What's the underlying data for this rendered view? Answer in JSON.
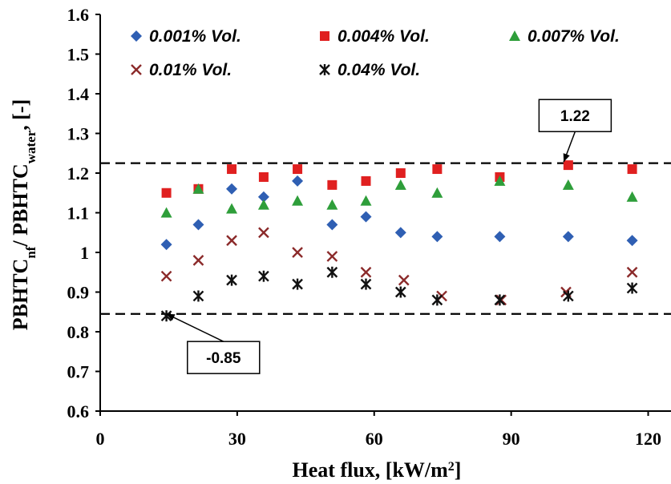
{
  "chart_data": {
    "type": "scatter",
    "xlabel": "Heat flux, [kW/m",
    "xlabel_sup": "2",
    "xlabel_end": "]",
    "ylabel_parts": [
      "PBHTC",
      "nf",
      "/ PBHTC",
      "water",
      ", [-]"
    ],
    "xlim": [
      0,
      125
    ],
    "ylim": [
      0.6,
      1.6
    ],
    "xticks": [
      "0",
      "30",
      "60",
      "90",
      "120"
    ],
    "xtick_values": [
      0,
      30,
      60,
      90,
      120
    ],
    "yticks": [
      "0.6",
      "0.7",
      "0.8",
      "0.9",
      "1",
      "1.1",
      "1.2",
      "1.3",
      "1.4",
      "1.5",
      "1.6"
    ],
    "ytick_values": [
      0.6,
      0.7,
      0.8,
      0.9,
      1.0,
      1.1,
      1.2,
      1.3,
      1.4,
      1.5,
      1.6
    ],
    "grid": false,
    "legend_position": "top",
    "series": [
      {
        "name": "0.001% Vol.",
        "marker": "diamond",
        "color": "#2f5fb3",
        "x": [
          14.5,
          21.5,
          28.8,
          35.8,
          43.2,
          50.8,
          58.2,
          65.8,
          73.8,
          87.5,
          102.5,
          116.5
        ],
        "y": [
          1.02,
          1.07,
          1.16,
          1.14,
          1.18,
          1.07,
          1.09,
          1.05,
          1.04,
          1.04,
          1.04,
          1.03
        ]
      },
      {
        "name": "0.004% Vol.",
        "marker": "square",
        "color": "#e02020",
        "x": [
          14.5,
          21.5,
          28.8,
          35.8,
          43.2,
          50.8,
          58.2,
          65.8,
          73.8,
          87.5,
          102.5,
          116.5
        ],
        "y": [
          1.15,
          1.16,
          1.21,
          1.19,
          1.21,
          1.17,
          1.18,
          1.2,
          1.21,
          1.19,
          1.22,
          1.21
        ]
      },
      {
        "name": "0.007% Vol.",
        "marker": "triangle",
        "color": "#2e9e3a",
        "x": [
          14.5,
          21.5,
          28.8,
          35.8,
          43.2,
          50.8,
          58.2,
          65.8,
          73.8,
          87.5,
          102.5,
          116.5
        ],
        "y": [
          1.1,
          1.16,
          1.11,
          1.12,
          1.13,
          1.12,
          1.13,
          1.17,
          1.15,
          1.18,
          1.17,
          1.14
        ]
      },
      {
        "name": "0.01% Vol.",
        "marker": "x",
        "color": "#8b2a2a",
        "x": [
          14.5,
          21.5,
          28.8,
          35.8,
          43.2,
          50.8,
          58.2,
          66.5,
          74.8,
          87.8,
          102,
          116.5
        ],
        "y": [
          0.94,
          0.98,
          1.03,
          1.05,
          1.0,
          0.99,
          0.95,
          0.93,
          0.89,
          0.88,
          0.9,
          0.95
        ]
      },
      {
        "name": "0.04% Vol.",
        "marker": "star",
        "color": "#111111",
        "x": [
          14.5,
          21.5,
          28.8,
          35.8,
          43.2,
          50.8,
          58.2,
          65.8,
          73.8,
          87.5,
          102.5,
          116.5
        ],
        "y": [
          0.84,
          0.89,
          0.93,
          0.94,
          0.92,
          0.95,
          0.92,
          0.9,
          0.88,
          0.88,
          0.89,
          0.91
        ]
      }
    ],
    "reference_lines": [
      {
        "y": 1.225,
        "style": "dashed"
      },
      {
        "y": 0.845,
        "style": "dashed"
      }
    ],
    "annotations": [
      {
        "text": "1.22",
        "target_x": 101.5,
        "target_y": 1.228,
        "box_x": 104,
        "box_y": 1.345
      },
      {
        "text": "-0.85",
        "target_x": 14.5,
        "target_y": 0.845,
        "box_x": 27,
        "box_y": 0.735
      }
    ]
  }
}
